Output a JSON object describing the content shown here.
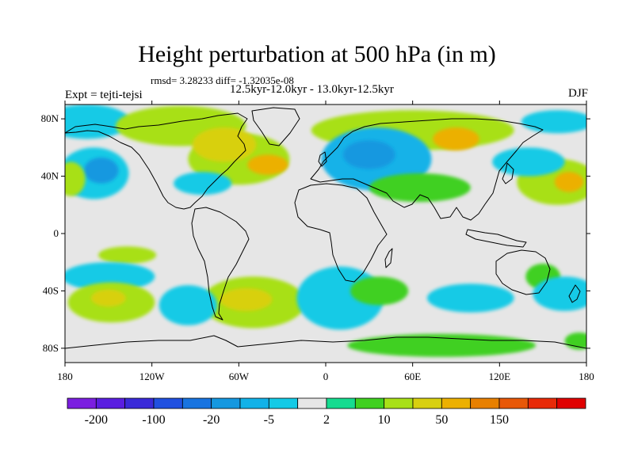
{
  "title": "Height perturbation at 500 hPa (in m)",
  "stats": "rmsd= 3.28233 diff= -1.32035e-08",
  "subtitle": "12.5kyr-12.0kyr - 13.0kyr-12.5kyr",
  "experiment": "Expt = tejti-tejsi",
  "season": "DJF",
  "chart_data": {
    "type": "heatmap",
    "projection": "cylindrical-equidistant",
    "variable": "500 hPa geopotential height perturbation",
    "units": "m",
    "x_range": [
      -180,
      180
    ],
    "y_range": [
      -90,
      90
    ],
    "x_ticks": [
      {
        "lon": -180,
        "label": "180"
      },
      {
        "lon": -120,
        "label": "120W"
      },
      {
        "lon": -60,
        "label": "60W"
      },
      {
        "lon": 0,
        "label": "0"
      },
      {
        "lon": 60,
        "label": "60E"
      },
      {
        "lon": 120,
        "label": "120E"
      },
      {
        "lon": 180,
        "label": "180"
      }
    ],
    "y_ticks": [
      {
        "lat": 80,
        "label": "80N"
      },
      {
        "lat": 40,
        "label": "40N"
      },
      {
        "lat": 0,
        "label": "0"
      },
      {
        "lat": -40,
        "label": "40S"
      },
      {
        "lat": -80,
        "label": "80S"
      }
    ],
    "colorbar": {
      "colors": [
        "#7b1fe0",
        "#5a1ee0",
        "#3a2ad8",
        "#2050e0",
        "#1874e0",
        "#1598e0",
        "#12b2e8",
        "#14cae6",
        "#e6e6e6",
        "#16dc90",
        "#40d020",
        "#a8e018",
        "#d8d010",
        "#ecb000",
        "#e88000",
        "#e85808",
        "#e82a08",
        "#e00000"
      ],
      "tick_labels": [
        {
          "boundary": 1,
          "label": "-200"
        },
        {
          "boundary": 3,
          "label": "-100"
        },
        {
          "boundary": 5,
          "label": "-20"
        },
        {
          "boundary": 7,
          "label": "-5"
        },
        {
          "boundary": 9,
          "label": "2"
        },
        {
          "boundary": 11,
          "label": "10"
        },
        {
          "boundary": 13,
          "label": "50"
        },
        {
          "boundary": 15,
          "label": "150"
        }
      ]
    },
    "anomalies": [
      {
        "lon": -165,
        "lat": 78,
        "rx": 30,
        "ry": 12,
        "level": 7
      },
      {
        "lon": -100,
        "lat": 75,
        "rx": 45,
        "ry": 14,
        "level": 11
      },
      {
        "lon": -60,
        "lat": 52,
        "rx": 35,
        "ry": 18,
        "level": 11
      },
      {
        "lon": -70,
        "lat": 62,
        "rx": 22,
        "ry": 12,
        "level": 12
      },
      {
        "lon": -40,
        "lat": 48,
        "rx": 14,
        "ry": 7,
        "level": 13
      },
      {
        "lon": 60,
        "lat": 72,
        "rx": 70,
        "ry": 14,
        "level": 11
      },
      {
        "lon": 90,
        "lat": 66,
        "rx": 16,
        "ry": 8,
        "level": 13
      },
      {
        "lon": 35,
        "lat": 52,
        "rx": 38,
        "ry": 22,
        "level": 6
      },
      {
        "lon": 30,
        "lat": 55,
        "rx": 18,
        "ry": 10,
        "level": 5
      },
      {
        "lon": 65,
        "lat": 32,
        "rx": 35,
        "ry": 10,
        "level": 10
      },
      {
        "lon": -160,
        "lat": 42,
        "rx": 24,
        "ry": 18,
        "level": 7
      },
      {
        "lon": -155,
        "lat": 44,
        "rx": 12,
        "ry": 9,
        "level": 5
      },
      {
        "lon": -176,
        "lat": 38,
        "rx": 10,
        "ry": 12,
        "level": 11
      },
      {
        "lon": -85,
        "lat": 35,
        "rx": 20,
        "ry": 8,
        "level": 7
      },
      {
        "lon": 160,
        "lat": 36,
        "rx": 28,
        "ry": 16,
        "level": 11
      },
      {
        "lon": 168,
        "lat": 36,
        "rx": 10,
        "ry": 7,
        "level": 13
      },
      {
        "lon": 140,
        "lat": 50,
        "rx": 25,
        "ry": 10,
        "level": 7
      },
      {
        "lon": 160,
        "lat": 78,
        "rx": 25,
        "ry": 8,
        "level": 7
      },
      {
        "lon": -137,
        "lat": -15,
        "rx": 20,
        "ry": 6,
        "level": 11
      },
      {
        "lon": -150,
        "lat": -30,
        "rx": 32,
        "ry": 10,
        "level": 7
      },
      {
        "lon": -148,
        "lat": -48,
        "rx": 30,
        "ry": 14,
        "level": 11
      },
      {
        "lon": -150,
        "lat": -45,
        "rx": 12,
        "ry": 6,
        "level": 12
      },
      {
        "lon": -50,
        "lat": -48,
        "rx": 36,
        "ry": 18,
        "level": 11
      },
      {
        "lon": -55,
        "lat": -46,
        "rx": 18,
        "ry": 8,
        "level": 12
      },
      {
        "lon": -95,
        "lat": -50,
        "rx": 20,
        "ry": 14,
        "level": 7
      },
      {
        "lon": 10,
        "lat": -45,
        "rx": 30,
        "ry": 22,
        "level": 7
      },
      {
        "lon": 37,
        "lat": -40,
        "rx": 20,
        "ry": 10,
        "level": 10
      },
      {
        "lon": 100,
        "lat": -45,
        "rx": 30,
        "ry": 10,
        "level": 7
      },
      {
        "lon": 150,
        "lat": -30,
        "rx": 12,
        "ry": 9,
        "level": 10
      },
      {
        "lon": 165,
        "lat": -42,
        "rx": 22,
        "ry": 12,
        "level": 7
      },
      {
        "lon": 80,
        "lat": -78,
        "rx": 65,
        "ry": 8,
        "level": 10
      },
      {
        "lon": 175,
        "lat": -75,
        "rx": 10,
        "ry": 6,
        "level": 10
      }
    ]
  }
}
